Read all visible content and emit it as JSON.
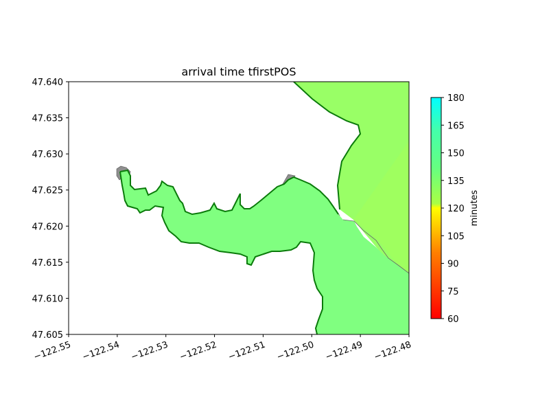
{
  "title": "arrival time tfirstPOS",
  "map": {
    "x_ticks": [
      "−122.55",
      "−122.54",
      "−122.53",
      "−122.52",
      "−122.51",
      "−122.50",
      "−122.49",
      "−122.48"
    ],
    "y_ticks": [
      "47.605",
      "47.610",
      "47.615",
      "47.620",
      "47.625",
      "47.630",
      "47.635",
      "47.640"
    ],
    "xlim": [
      -122.55,
      -122.48
    ],
    "ylim": [
      47.605,
      47.64
    ],
    "colors": {
      "water_inner": "#80ff80",
      "water_outer": "#99ff66",
      "water_outer_lower": "#a4ff5a",
      "shoreline": "#0a7a0a",
      "land_patch": "#8f8f8f"
    }
  },
  "colorbar": {
    "label": "minutes",
    "ticks": [
      "180",
      "165",
      "150",
      "135",
      "120",
      "105",
      "90",
      "75",
      "60"
    ],
    "range": [
      60,
      180
    ]
  }
}
